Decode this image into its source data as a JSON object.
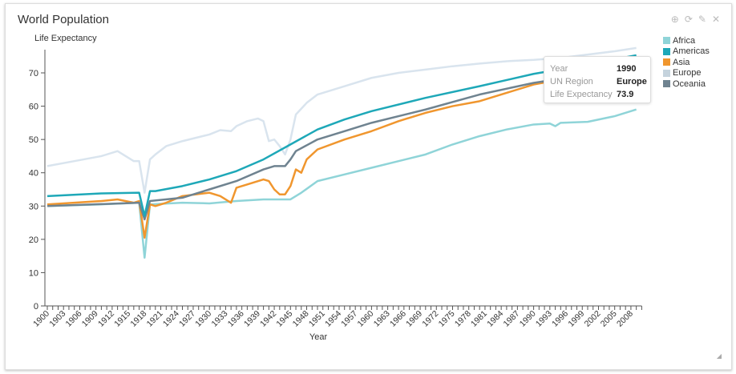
{
  "panel": {
    "title": "World Population",
    "icons": [
      "download-icon",
      "refresh-icon",
      "edit-icon",
      "close-icon"
    ]
  },
  "tooltip": {
    "rows": [
      {
        "label": "Year",
        "value": "1990"
      },
      {
        "label": "UN Region",
        "value": "Europe"
      },
      {
        "label": "Life Expectancy",
        "value": "73.9"
      }
    ]
  },
  "chart_data": {
    "type": "line",
    "title": "",
    "xlabel": "Year",
    "ylabel": "Life Expectancy",
    "xlim": [
      1900,
      2010
    ],
    "ylim": [
      0,
      77
    ],
    "yticks": [
      0,
      10,
      20,
      30,
      40,
      50,
      60,
      70
    ],
    "xticks": [
      1900,
      1903,
      1906,
      1909,
      1912,
      1915,
      1918,
      1921,
      1924,
      1927,
      1930,
      1933,
      1936,
      1939,
      1942,
      1945,
      1948,
      1951,
      1954,
      1957,
      1960,
      1963,
      1966,
      1969,
      1972,
      1975,
      1978,
      1981,
      1984,
      1987,
      1990,
      1993,
      1996,
      1999,
      2002,
      2005,
      2008
    ],
    "legend_position": "right",
    "series": [
      {
        "name": "Africa",
        "color": "#8fd4d8",
        "points": [
          [
            1900,
            30
          ],
          [
            1910,
            30.5
          ],
          [
            1917,
            31
          ],
          [
            1918,
            14.5
          ],
          [
            1919,
            30.5
          ],
          [
            1925,
            31
          ],
          [
            1930,
            30.8
          ],
          [
            1935,
            31.5
          ],
          [
            1940,
            32
          ],
          [
            1945,
            32
          ],
          [
            1947,
            34
          ],
          [
            1950,
            37.5
          ],
          [
            1955,
            39.5
          ],
          [
            1960,
            41.5
          ],
          [
            1965,
            43.5
          ],
          [
            1970,
            45.5
          ],
          [
            1975,
            48.5
          ],
          [
            1980,
            51
          ],
          [
            1985,
            53
          ],
          [
            1990,
            54.5
          ],
          [
            1993,
            54.8
          ],
          [
            1994,
            54
          ],
          [
            1995,
            55
          ],
          [
            2000,
            55.3
          ],
          [
            2005,
            57
          ],
          [
            2009,
            59
          ]
        ]
      },
      {
        "name": "Americas",
        "color": "#1ea8b8",
        "points": [
          [
            1900,
            33
          ],
          [
            1910,
            33.8
          ],
          [
            1917,
            34
          ],
          [
            1918,
            27
          ],
          [
            1919,
            34.5
          ],
          [
            1920,
            34.5
          ],
          [
            1925,
            36
          ],
          [
            1930,
            38
          ],
          [
            1935,
            40.5
          ],
          [
            1940,
            44
          ],
          [
            1945,
            48.5
          ],
          [
            1950,
            53
          ],
          [
            1955,
            56
          ],
          [
            1960,
            58.5
          ],
          [
            1970,
            62.5
          ],
          [
            1980,
            66
          ],
          [
            1990,
            69.7
          ],
          [
            2000,
            72.5
          ],
          [
            2009,
            75.3
          ]
        ]
      },
      {
        "name": "Asia",
        "color": "#f0962e",
        "points": [
          [
            1900,
            30.5
          ],
          [
            1905,
            31
          ],
          [
            1910,
            31.5
          ],
          [
            1913,
            32
          ],
          [
            1916,
            31
          ],
          [
            1917,
            31.5
          ],
          [
            1918,
            20.5
          ],
          [
            1919,
            30.5
          ],
          [
            1920,
            30
          ],
          [
            1922,
            31
          ],
          [
            1925,
            33
          ],
          [
            1930,
            34
          ],
          [
            1932,
            33
          ],
          [
            1934,
            31
          ],
          [
            1935,
            35.5
          ],
          [
            1937,
            36.5
          ],
          [
            1940,
            38
          ],
          [
            1941,
            37.5
          ],
          [
            1942,
            35
          ],
          [
            1943,
            33.5
          ],
          [
            1944,
            33.5
          ],
          [
            1945,
            36
          ],
          [
            1946,
            41
          ],
          [
            1947,
            40
          ],
          [
            1948,
            44
          ],
          [
            1950,
            47
          ],
          [
            1955,
            50
          ],
          [
            1960,
            52.5
          ],
          [
            1965,
            55.5
          ],
          [
            1970,
            58
          ],
          [
            1975,
            60
          ],
          [
            1980,
            61.5
          ],
          [
            1985,
            64
          ],
          [
            1990,
            66.5
          ],
          [
            2000,
            69.5
          ],
          [
            2009,
            72
          ]
        ]
      },
      {
        "name": "Europe",
        "color": "#c5d3dd",
        "line_color": "#d9e4ee",
        "points": [
          [
            1900,
            42
          ],
          [
            1905,
            43.5
          ],
          [
            1910,
            45
          ],
          [
            1913,
            46.5
          ],
          [
            1916,
            43.5
          ],
          [
            1917,
            43.5
          ],
          [
            1918,
            34
          ],
          [
            1919,
            44
          ],
          [
            1920,
            45.5
          ],
          [
            1922,
            48
          ],
          [
            1925,
            49.5
          ],
          [
            1930,
            51.5
          ],
          [
            1932,
            52.8
          ],
          [
            1934,
            52.5
          ],
          [
            1935,
            54
          ],
          [
            1937,
            55.5
          ],
          [
            1939,
            56.3
          ],
          [
            1940,
            55.5
          ],
          [
            1941,
            49.5
          ],
          [
            1942,
            50
          ],
          [
            1943,
            48
          ],
          [
            1944,
            45.5
          ],
          [
            1945,
            50
          ],
          [
            1946,
            57.5
          ],
          [
            1948,
            61
          ],
          [
            1950,
            63.5
          ],
          [
            1955,
            66
          ],
          [
            1960,
            68.5
          ],
          [
            1965,
            70
          ],
          [
            1970,
            71
          ],
          [
            1975,
            72
          ],
          [
            1980,
            72.8
          ],
          [
            1985,
            73.5
          ],
          [
            1990,
            73.9
          ],
          [
            1995,
            74.5
          ],
          [
            2000,
            75.5
          ],
          [
            2005,
            76.5
          ],
          [
            2009,
            77.5
          ]
        ]
      },
      {
        "name": "Oceania",
        "color": "#6f8390",
        "points": [
          [
            1900,
            30
          ],
          [
            1917,
            31
          ],
          [
            1918,
            26
          ],
          [
            1919,
            31.5
          ],
          [
            1925,
            32.5
          ],
          [
            1930,
            35
          ],
          [
            1935,
            37.5
          ],
          [
            1940,
            41
          ],
          [
            1942,
            42
          ],
          [
            1944,
            42
          ],
          [
            1945,
            44
          ],
          [
            1946,
            46.5
          ],
          [
            1950,
            50
          ],
          [
            1955,
            52.5
          ],
          [
            1960,
            55
          ],
          [
            1970,
            59
          ],
          [
            1980,
            63.5
          ],
          [
            1990,
            67
          ],
          [
            2000,
            69.5
          ],
          [
            2009,
            73
          ]
        ]
      }
    ]
  }
}
